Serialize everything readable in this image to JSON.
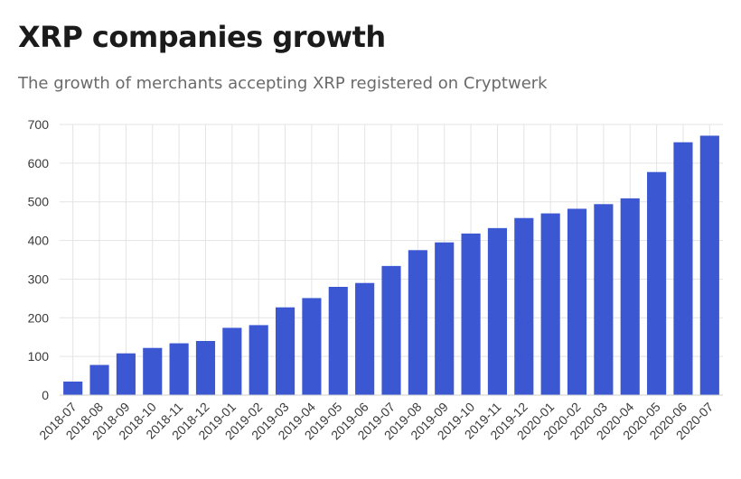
{
  "header": {
    "title": "XRP companies growth",
    "subtitle": "The growth of merchants accepting XRP registered on Cryptwerk"
  },
  "chart_data": {
    "type": "bar",
    "title": "XRP companies growth",
    "subtitle": "The growth of merchants accepting XRP registered on Cryptwerk",
    "xlabel": "",
    "ylabel": "",
    "ylim": [
      0,
      700
    ],
    "yticks": [
      0,
      100,
      200,
      300,
      400,
      500,
      600,
      700
    ],
    "grid": true,
    "legend": "none",
    "bar_color": "#3b57d1",
    "categories": [
      "2018-07",
      "2018-08",
      "2018-09",
      "2018-10",
      "2018-11",
      "2018-12",
      "2019-01",
      "2019-02",
      "2019-03",
      "2019-04",
      "2019-05",
      "2019-06",
      "2019-07",
      "2019-08",
      "2019-09",
      "2019-10",
      "2019-11",
      "2019-12",
      "2020-01",
      "2020-02",
      "2020-03",
      "2020-04",
      "2020-05",
      "2020-06",
      "2020-07"
    ],
    "values": [
      35,
      78,
      108,
      122,
      134,
      140,
      174,
      181,
      227,
      251,
      280,
      290,
      334,
      375,
      395,
      418,
      432,
      458,
      470,
      482,
      494,
      509,
      577,
      654,
      671
    ]
  }
}
